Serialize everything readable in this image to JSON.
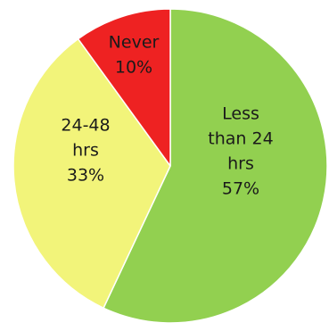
{
  "chart_data": {
    "type": "pie",
    "slices": [
      {
        "category": "Less than 24 hrs",
        "label_lines": [
          "Less",
          "than 24",
          "hrs",
          "57%"
        ],
        "percent": 57,
        "color": "#92d050"
      },
      {
        "category": "24-48 hrs",
        "label_lines": [
          "24-48",
          "hrs",
          "33%"
        ],
        "percent": 33,
        "color": "#f2f47a"
      },
      {
        "category": "Never",
        "label_lines": [
          "Never",
          "10%"
        ],
        "percent": 10,
        "color": "#ee2222"
      }
    ],
    "start_angle_deg": 0,
    "direction": "clockwise",
    "slice_border_color": "#ffffff",
    "legend": "none"
  }
}
